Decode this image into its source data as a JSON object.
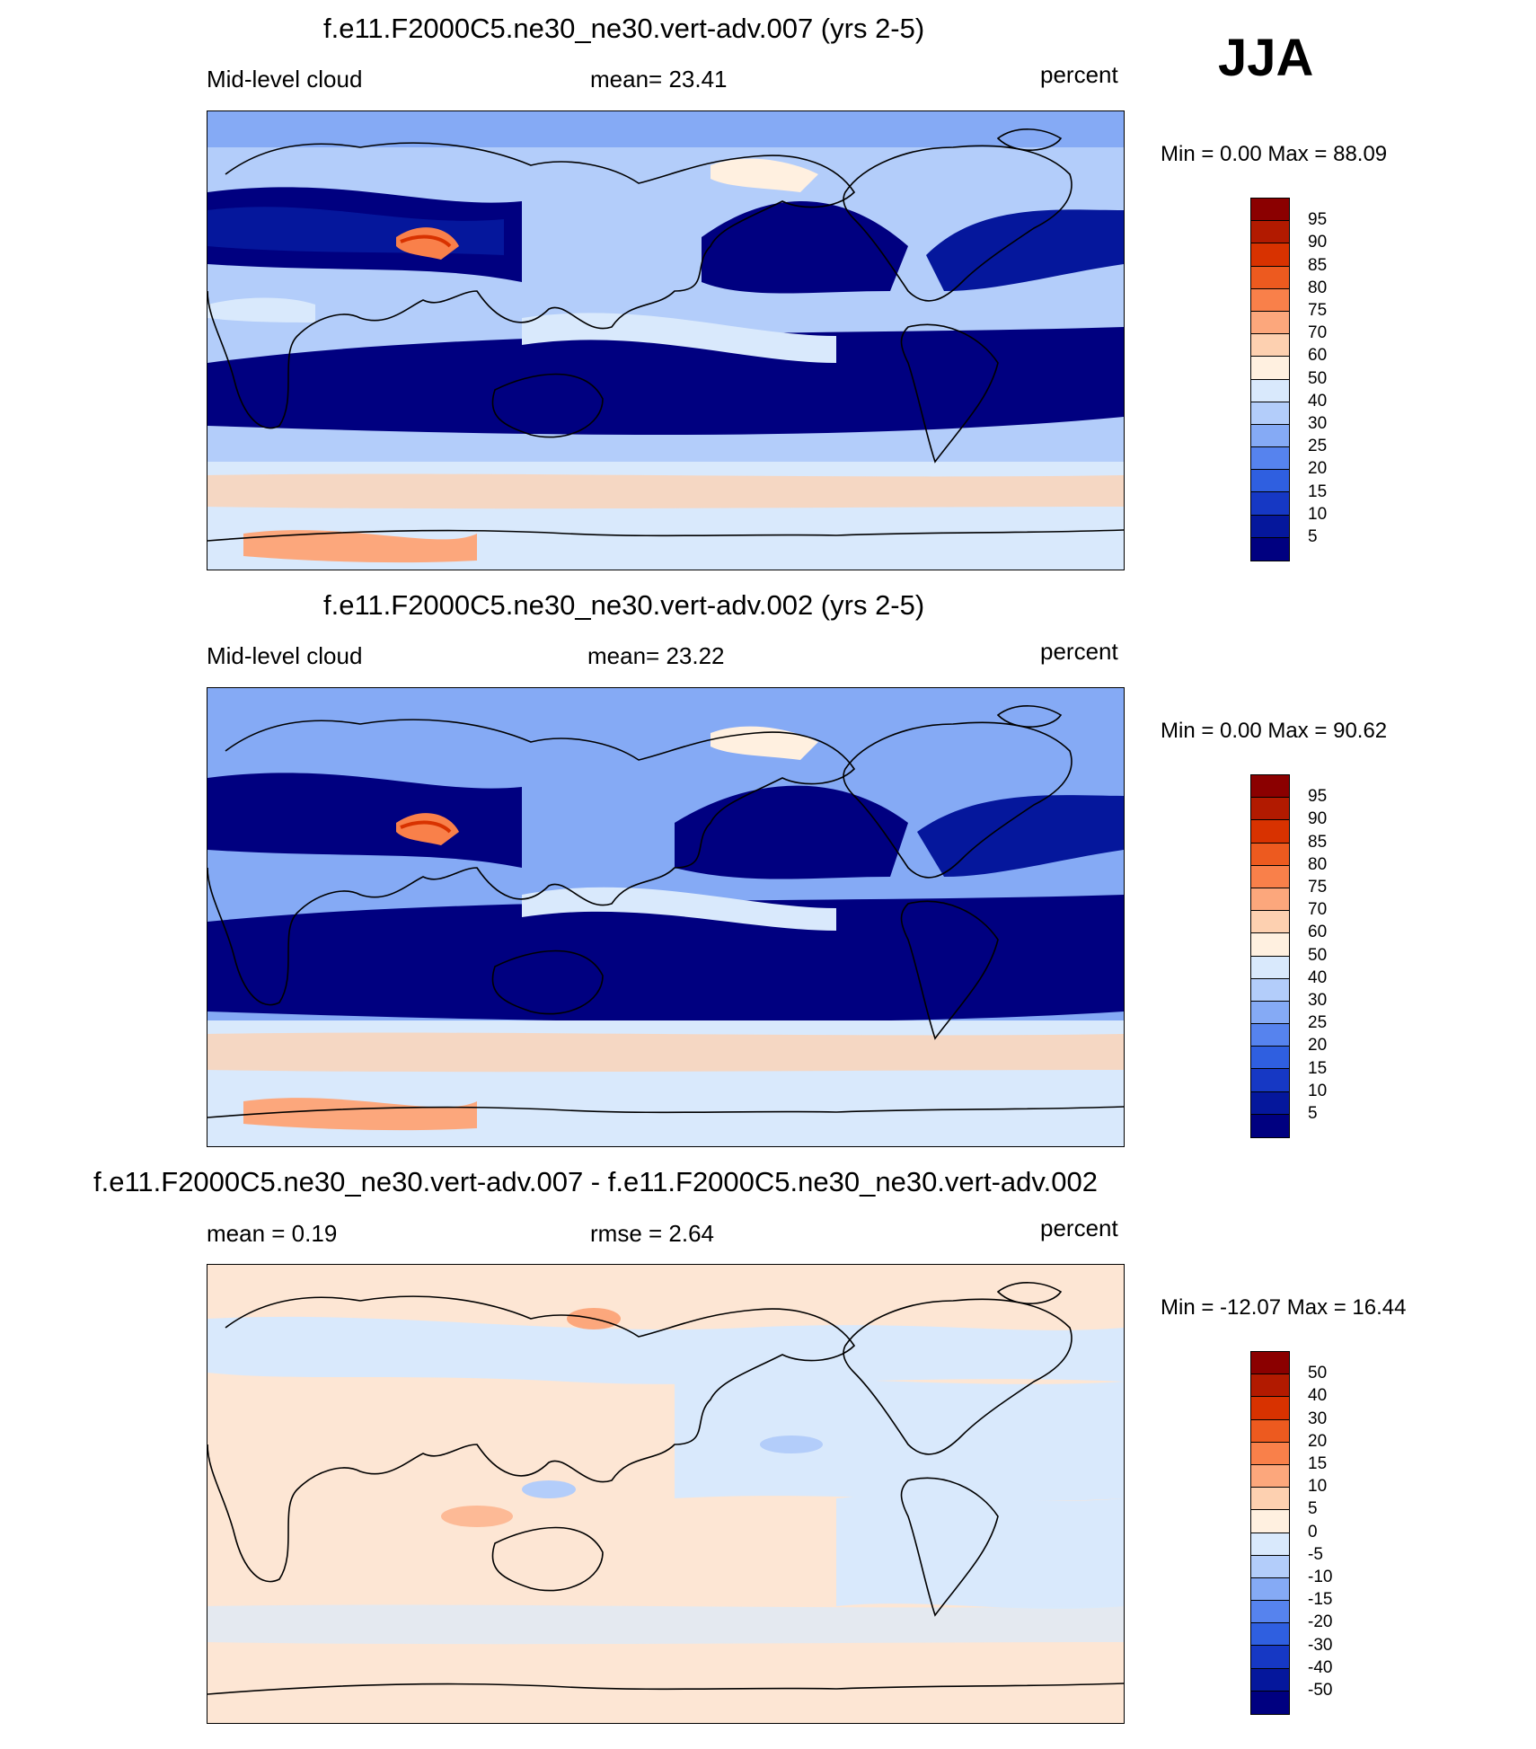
{
  "season": "JJA",
  "panels": [
    {
      "title": "f.e11.F2000C5.ne30_ne30.vert-adv.007 (yrs 2-5)",
      "left_label": "Mid-level cloud",
      "center_label": "mean=  23.41",
      "units": "percent",
      "minmax": "Min =   0.00 Max =  88.09",
      "colorbar": "abs"
    },
    {
      "title": "f.e11.F2000C5.ne30_ne30.vert-adv.002 (yrs 2-5)",
      "left_label": "Mid-level cloud",
      "center_label": "mean=  23.22",
      "units": "percent",
      "minmax": "Min =   0.00 Max =  90.62",
      "colorbar": "abs"
    },
    {
      "title": "f.e11.F2000C5.ne30_ne30.vert-adv.007 - f.e11.F2000C5.ne30_ne30.vert-adv.002",
      "left_label": "mean =   0.19",
      "center_label": "rmse =   2.64",
      "units": "percent",
      "minmax": "Min = -12.07 Max =  16.44",
      "colorbar": "diff"
    }
  ],
  "chart_data": [
    {
      "type": "heatmap",
      "title": "f.e11.F2000C5.ne30_ne30.vert-adv.007 (yrs 2-5)",
      "variable": "Mid-level cloud",
      "units": "percent",
      "mean": 23.41,
      "min": 0.0,
      "max": 88.09,
      "colorbar_levels": [
        95,
        90,
        85,
        80,
        75,
        70,
        60,
        50,
        40,
        30,
        25,
        20,
        15,
        10,
        5
      ],
      "colorbar_colors": [
        "#8b0000",
        "#b21a00",
        "#d83200",
        "#ed5a1f",
        "#f9804a",
        "#fca77c",
        "#fdd0b0",
        "#fff0e0",
        "#d9e9fc",
        "#b3cdfa",
        "#85aaf5",
        "#5683ee",
        "#2f5fe0",
        "#1638c4",
        "#05179c",
        "#000080"
      ]
    },
    {
      "type": "heatmap",
      "title": "f.e11.F2000C5.ne30_ne30.vert-adv.002 (yrs 2-5)",
      "variable": "Mid-level cloud",
      "units": "percent",
      "mean": 23.22,
      "min": 0.0,
      "max": 90.62,
      "colorbar_levels": [
        95,
        90,
        85,
        80,
        75,
        70,
        60,
        50,
        40,
        30,
        25,
        20,
        15,
        10,
        5
      ],
      "colorbar_colors": [
        "#8b0000",
        "#b21a00",
        "#d83200",
        "#ed5a1f",
        "#f9804a",
        "#fca77c",
        "#fdd0b0",
        "#fff0e0",
        "#d9e9fc",
        "#b3cdfa",
        "#85aaf5",
        "#5683ee",
        "#2f5fe0",
        "#1638c4",
        "#05179c",
        "#000080"
      ]
    },
    {
      "type": "heatmap",
      "title": "f.e11.F2000C5.ne30_ne30.vert-adv.007 - f.e11.F2000C5.ne30_ne30.vert-adv.002",
      "units": "percent",
      "mean": 0.19,
      "rmse": 2.64,
      "min": -12.07,
      "max": 16.44,
      "colorbar_levels": [
        50,
        40,
        30,
        20,
        15,
        10,
        5,
        0,
        -5,
        -10,
        -15,
        -20,
        -30,
        -40,
        -50
      ],
      "colorbar_colors": [
        "#8b0000",
        "#b21a00",
        "#d83200",
        "#ed5a1f",
        "#f9804a",
        "#fca77c",
        "#fdd0b0",
        "#fff0e0",
        "#d9e9fc",
        "#b3cdfa",
        "#85aaf5",
        "#5683ee",
        "#2f5fe0",
        "#1638c4",
        "#05179c",
        "#000080"
      ]
    }
  ]
}
